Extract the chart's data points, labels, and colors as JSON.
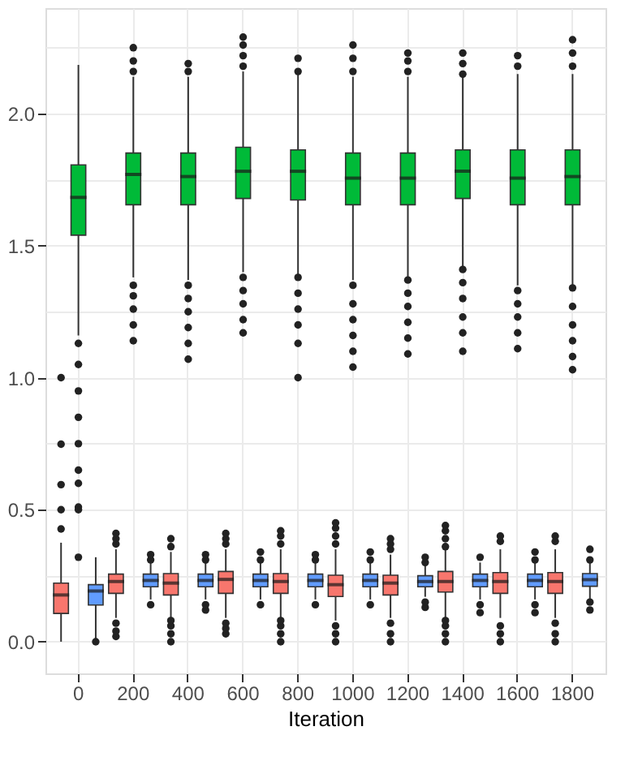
{
  "chart_data": {
    "type": "box",
    "xlabel": "Iteration",
    "categories": [
      "0",
      "200",
      "400",
      "600",
      "800",
      "1000",
      "1200",
      "1400",
      "1600",
      "1800"
    ],
    "ylim": [
      -0.12,
      2.4
    ],
    "yticks": [
      {
        "value": 0,
        "label": "0.0"
      },
      {
        "value": 0.25,
        "label": null
      },
      {
        "value": 0.5,
        "label": "0.5"
      },
      {
        "value": 0.75,
        "label": null
      },
      {
        "value": 1,
        "label": "1.0"
      },
      {
        "value": 1.25,
        "label": null
      },
      {
        "value": 1.5,
        "label": "1.5"
      },
      {
        "value": 1.75,
        "label": null
      },
      {
        "value": 2,
        "label": "2.0"
      },
      {
        "value": 2.25,
        "label": null
      }
    ],
    "grid": true,
    "series": [
      {
        "color": "#f8766d",
        "boxes": [
          {
            "low": 0.0,
            "q1": 0.107,
            "median": 0.177,
            "q3": 0.222,
            "high": 0.375,
            "outliers": [
              0.427,
              0.5,
              0.595,
              0.748,
              1.0
            ]
          },
          {
            "low": 0.09,
            "q1": 0.183,
            "median": 0.228,
            "q3": 0.256,
            "high": 0.35,
            "outliers": [
              0.02,
              0.04,
              0.07,
              0.37,
              0.39,
              0.41
            ]
          },
          {
            "low": 0.09,
            "q1": 0.177,
            "median": 0.222,
            "q3": 0.258,
            "high": 0.34,
            "outliers": [
              0.0,
              0.03,
              0.06,
              0.08,
              0.36,
              0.39
            ]
          },
          {
            "low": 0.09,
            "q1": 0.183,
            "median": 0.236,
            "q3": 0.266,
            "high": 0.35,
            "outliers": [
              0.03,
              0.05,
              0.07,
              0.37,
              0.39,
              0.41
            ]
          },
          {
            "low": 0.09,
            "q1": 0.183,
            "median": 0.228,
            "q3": 0.258,
            "high": 0.35,
            "outliers": [
              0.0,
              0.03,
              0.06,
              0.08,
              0.37,
              0.4,
              0.42
            ]
          },
          {
            "low": 0.08,
            "q1": 0.171,
            "median": 0.216,
            "q3": 0.252,
            "high": 0.35,
            "outliers": [
              0.0,
              0.03,
              0.06,
              0.37,
              0.4,
              0.43,
              0.45
            ]
          },
          {
            "low": 0.09,
            "q1": 0.177,
            "median": 0.222,
            "q3": 0.252,
            "high": 0.33,
            "outliers": [
              0.0,
              0.03,
              0.07,
              0.35,
              0.37,
              0.39
            ]
          },
          {
            "low": 0.09,
            "q1": 0.188,
            "median": 0.228,
            "q3": 0.266,
            "high": 0.35,
            "outliers": [
              0.0,
              0.03,
              0.06,
              0.08,
              0.36,
              0.39,
              0.42,
              0.44
            ]
          },
          {
            "low": 0.09,
            "q1": 0.183,
            "median": 0.228,
            "q3": 0.262,
            "high": 0.35,
            "outliers": [
              0.0,
              0.03,
              0.06,
              0.38,
              0.4
            ]
          },
          {
            "low": 0.09,
            "q1": 0.183,
            "median": 0.228,
            "q3": 0.262,
            "high": 0.35,
            "outliers": [
              0.0,
              0.03,
              0.07,
              0.38,
              0.4
            ]
          }
        ]
      },
      {
        "color": "#00ba38",
        "boxes": [
          {
            "low": 1.16,
            "q1": 1.54,
            "median": 1.683,
            "q3": 1.806,
            "high": 2.185,
            "outliers": [
              1.13,
              1.05,
              0.95,
              0.85,
              0.75,
              0.65,
              0.6,
              0.51,
              0.5,
              0.32
            ]
          },
          {
            "low": 1.38,
            "q1": 1.655,
            "median": 1.77,
            "q3": 1.851,
            "high": 2.14,
            "outliers": [
              1.14,
              1.2,
              1.26,
              1.31,
              1.35,
              2.16,
              2.2,
              2.25
            ]
          },
          {
            "low": 1.37,
            "q1": 1.655,
            "median": 1.762,
            "q3": 1.851,
            "high": 2.14,
            "outliers": [
              1.07,
              1.13,
              1.19,
              1.25,
              1.3,
              1.35,
              2.16,
              2.19
            ]
          },
          {
            "low": 1.4,
            "q1": 1.679,
            "median": 1.782,
            "q3": 1.873,
            "high": 2.16,
            "outliers": [
              1.17,
              1.22,
              1.28,
              1.33,
              1.38,
              2.18,
              2.22,
              2.26,
              2.29
            ]
          },
          {
            "low": 1.39,
            "q1": 1.673,
            "median": 1.782,
            "q3": 1.863,
            "high": 2.15,
            "outliers": [
              1.0,
              1.13,
              1.2,
              1.26,
              1.32,
              1.38,
              2.16,
              2.21
            ]
          },
          {
            "low": 1.37,
            "q1": 1.655,
            "median": 1.756,
            "q3": 1.851,
            "high": 2.14,
            "outliers": [
              1.04,
              1.1,
              1.16,
              1.22,
              1.28,
              1.35,
              2.16,
              2.21,
              2.26
            ]
          },
          {
            "low": 1.38,
            "q1": 1.655,
            "median": 1.756,
            "q3": 1.851,
            "high": 2.14,
            "outliers": [
              1.09,
              1.15,
              1.21,
              1.27,
              1.32,
              1.37,
              2.16,
              2.2,
              2.23
            ]
          },
          {
            "low": 1.42,
            "q1": 1.679,
            "median": 1.782,
            "q3": 1.863,
            "high": 2.14,
            "outliers": [
              1.1,
              1.17,
              1.23,
              1.3,
              1.36,
              1.41,
              2.15,
              2.19,
              2.23
            ]
          },
          {
            "low": 1.35,
            "q1": 1.655,
            "median": 1.756,
            "q3": 1.863,
            "high": 2.15,
            "outliers": [
              1.11,
              1.17,
              1.23,
              1.28,
              1.33,
              2.18,
              2.22
            ]
          },
          {
            "low": 1.35,
            "q1": 1.655,
            "median": 1.762,
            "q3": 1.863,
            "high": 2.15,
            "outliers": [
              1.03,
              1.08,
              1.14,
              1.2,
              1.27,
              1.34,
              2.18,
              2.23,
              2.28
            ]
          }
        ]
      },
      {
        "color": "#619cff",
        "boxes": [
          {
            "low": 0.01,
            "q1": 0.139,
            "median": 0.192,
            "q3": 0.216,
            "high": 0.32,
            "outliers": [
              0.0
            ]
          },
          {
            "low": 0.16,
            "q1": 0.208,
            "median": 0.232,
            "q3": 0.256,
            "high": 0.3,
            "outliers": [
              0.14,
              0.31,
              0.33
            ]
          },
          {
            "low": 0.16,
            "q1": 0.208,
            "median": 0.232,
            "q3": 0.256,
            "high": 0.3,
            "outliers": [
              0.12,
              0.14,
              0.31,
              0.33
            ]
          },
          {
            "low": 0.16,
            "q1": 0.208,
            "median": 0.232,
            "q3": 0.256,
            "high": 0.3,
            "outliers": [
              0.14,
              0.31,
              0.34
            ]
          },
          {
            "low": 0.16,
            "q1": 0.208,
            "median": 0.232,
            "q3": 0.256,
            "high": 0.3,
            "outliers": [
              0.14,
              0.31,
              0.33
            ]
          },
          {
            "low": 0.16,
            "q1": 0.208,
            "median": 0.232,
            "q3": 0.256,
            "high": 0.3,
            "outliers": [
              0.14,
              0.31,
              0.34
            ]
          },
          {
            "low": 0.17,
            "q1": 0.208,
            "median": 0.228,
            "q3": 0.25,
            "high": 0.29,
            "outliers": [
              0.13,
              0.15,
              0.3,
              0.32
            ]
          },
          {
            "low": 0.16,
            "q1": 0.208,
            "median": 0.232,
            "q3": 0.256,
            "high": 0.3,
            "outliers": [
              0.11,
              0.14,
              0.32
            ]
          },
          {
            "low": 0.16,
            "q1": 0.208,
            "median": 0.232,
            "q3": 0.256,
            "high": 0.3,
            "outliers": [
              0.11,
              0.14,
              0.31,
              0.34
            ]
          },
          {
            "low": 0.16,
            "q1": 0.21,
            "median": 0.235,
            "q3": 0.258,
            "high": 0.3,
            "outliers": [
              0.12,
              0.15,
              0.31,
              0.35
            ]
          }
        ]
      }
    ]
  }
}
